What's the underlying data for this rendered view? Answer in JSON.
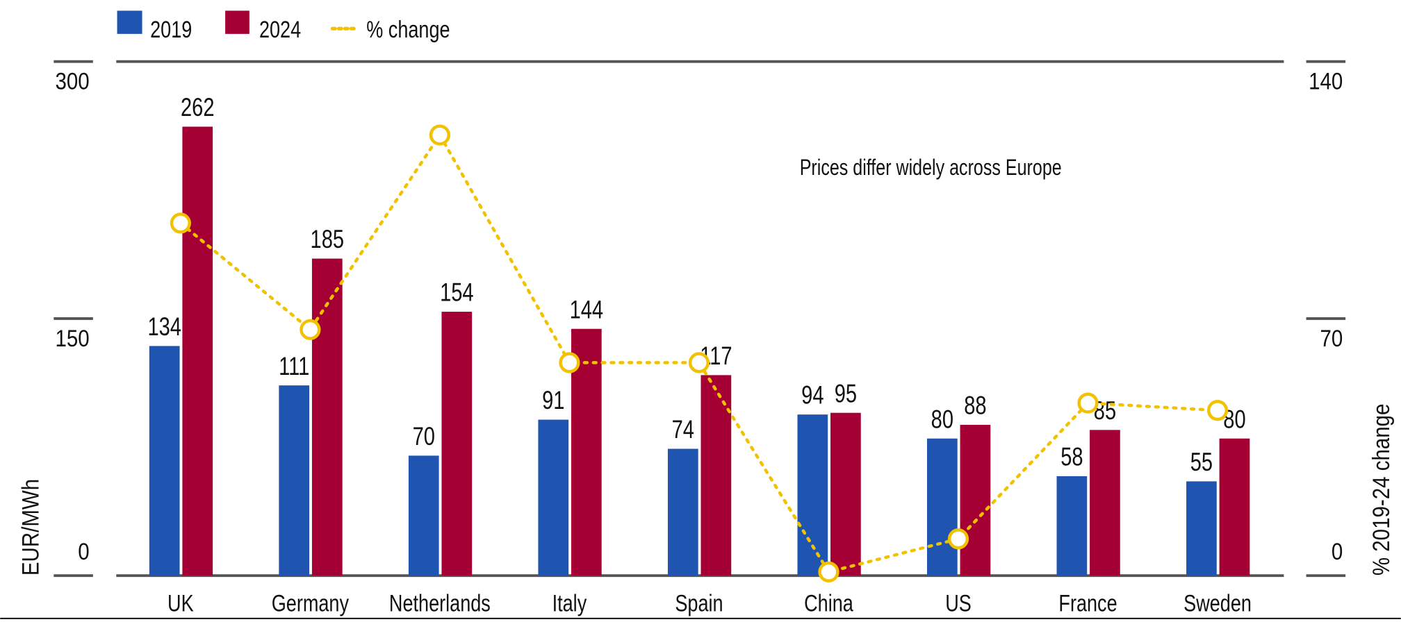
{
  "chart_data": {
    "type": "bar",
    "categories": [
      "UK",
      "Germany",
      "Netherlands",
      "Italy",
      "Spain",
      "China",
      "US",
      "France",
      "Sweden"
    ],
    "series": [
      {
        "name": "2019",
        "type": "bar",
        "axis": "left",
        "color": "#1f55b0",
        "values": [
          134,
          111,
          70,
          91,
          74,
          94,
          80,
          58,
          55
        ]
      },
      {
        "name": "2024",
        "type": "bar",
        "axis": "left",
        "color": "#a50034",
        "values": [
          262,
          185,
          154,
          144,
          117,
          95,
          88,
          85,
          80
        ]
      },
      {
        "name": "% change",
        "type": "line",
        "style": "dotted",
        "axis": "right",
        "color": "#f2c200",
        "values": [
          96,
          67,
          120,
          58,
          58,
          1,
          10,
          47,
          45
        ]
      }
    ],
    "ylabel": "EUR/MWh",
    "ylim": [
      0,
      300
    ],
    "yticks": [
      "0",
      "150",
      "300"
    ],
    "y2label": "% 2019-24 change",
    "y2lim": [
      0,
      140
    ],
    "y2ticks": [
      "0",
      "70",
      "140"
    ],
    "annotation": "Prices differ widely across Europe",
    "legend": "top-left",
    "grid": false
  }
}
